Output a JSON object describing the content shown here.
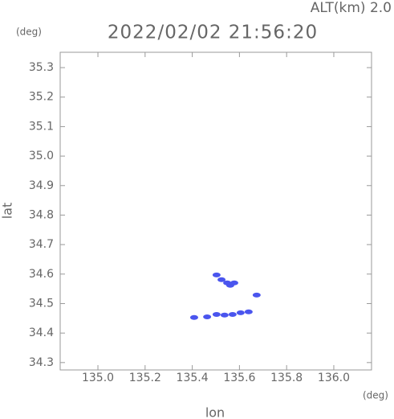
{
  "chart_data": {
    "type": "scatter",
    "title": "2022/02/02 21:56:20",
    "subtitle": "ALT(km) 2.0",
    "y_unit": "(deg)",
    "x_unit": "(deg)",
    "xlabel": "lon",
    "ylabel": "lat",
    "x": [
      135.503,
      135.524,
      135.548,
      135.578,
      135.561,
      135.673,
      135.408,
      135.463,
      135.503,
      135.537,
      135.571,
      135.605,
      135.639
    ],
    "values": [
      34.597,
      34.581,
      34.57,
      34.57,
      34.562,
      34.529,
      34.453,
      34.455,
      34.463,
      34.461,
      34.463,
      34.469,
      34.472
    ],
    "color": "#4a55ee",
    "xlim": [
      134.84,
      136.16
    ],
    "ylim": [
      34.275,
      35.352
    ],
    "xticks": [
      {
        "value": 135,
        "label": "135.0"
      },
      135.2,
      135.4,
      135.6,
      135.8,
      {
        "value": 136,
        "label": "136.0"
      }
    ],
    "yticks": [
      34.3,
      34.4,
      34.5,
      34.6,
      34.7,
      34.8,
      34.9,
      {
        "value": 35,
        "label": "35.0"
      },
      35.1,
      35.2,
      35.3
    ],
    "grid": false
  }
}
